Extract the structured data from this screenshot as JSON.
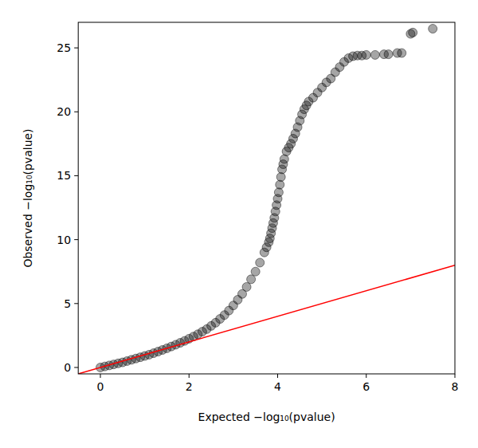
{
  "chart_data": {
    "type": "scatter",
    "x_label": "Expected −log₁₀(pvalue)",
    "y_label": "Observed −log₁₀(pvalue)",
    "xlim": [
      -0.5,
      8
    ],
    "ylim": [
      -0.5,
      27
    ],
    "xticks": [
      0,
      2,
      4,
      6,
      8
    ],
    "yticks": [
      0,
      5,
      10,
      15,
      20,
      25
    ],
    "grid": false,
    "series": [
      {
        "type": "scatter",
        "marker": "circle",
        "color": "#000000",
        "x": [
          0,
          0.1,
          0.2,
          0.3,
          0.4,
          0.5,
          0.6,
          0.7,
          0.8,
          0.9,
          1.0,
          1.1,
          1.2,
          1.3,
          1.4,
          1.5,
          1.6,
          1.7,
          1.8,
          1.9,
          2.0,
          2.1,
          2.2,
          2.3,
          2.4,
          2.5,
          2.6,
          2.7,
          2.8,
          2.9,
          3.0,
          3.1,
          3.2,
          3.3,
          3.4,
          3.5,
          3.6,
          3.7,
          3.75,
          3.8,
          3.825,
          3.85,
          3.875,
          3.9,
          3.925,
          3.95,
          3.975,
          4.0,
          4.025,
          4.05,
          4.075,
          4.1,
          4.125,
          4.15,
          4.2,
          4.25,
          4.3,
          4.35,
          4.4,
          4.45,
          4.5,
          4.55,
          4.6,
          4.65,
          4.7,
          4.8,
          4.9,
          5.0,
          5.1,
          5.2,
          5.3,
          5.4,
          5.5,
          5.6,
          5.7,
          5.8,
          5.9,
          6.0,
          6.2,
          6.4,
          6.5,
          6.7,
          6.8,
          7.0,
          7.05,
          7.5
        ],
        "values": [
          0,
          0.08,
          0.16,
          0.24,
          0.32,
          0.4,
          0.5,
          0.6,
          0.7,
          0.8,
          0.9,
          1.0,
          1.12,
          1.24,
          1.37,
          1.5,
          1.64,
          1.78,
          1.93,
          2.08,
          2.25,
          2.42,
          2.6,
          2.8,
          3.0,
          3.25,
          3.5,
          3.8,
          4.1,
          4.45,
          4.85,
          5.3,
          5.75,
          6.3,
          6.9,
          7.5,
          8.2,
          9.0,
          9.4,
          9.8,
          10.1,
          10.5,
          10.9,
          11.3,
          11.7,
          12.2,
          12.7,
          13.2,
          13.7,
          14.3,
          14.9,
          15.5,
          15.9,
          16.3,
          16.9,
          17.2,
          17.5,
          17.9,
          18.3,
          18.8,
          19.3,
          19.8,
          20.2,
          20.5,
          20.8,
          21.1,
          21.5,
          21.9,
          22.3,
          22.6,
          23.1,
          23.5,
          23.9,
          24.2,
          24.35,
          24.4,
          24.4,
          24.45,
          24.45,
          24.5,
          24.5,
          24.6,
          24.6,
          26.1,
          26.2,
          26.5
        ]
      },
      {
        "type": "line",
        "line_style": "solid",
        "color": "#ff0000",
        "x": [
          -0.5,
          8
        ],
        "values": [
          -0.5,
          8
        ]
      }
    ]
  }
}
